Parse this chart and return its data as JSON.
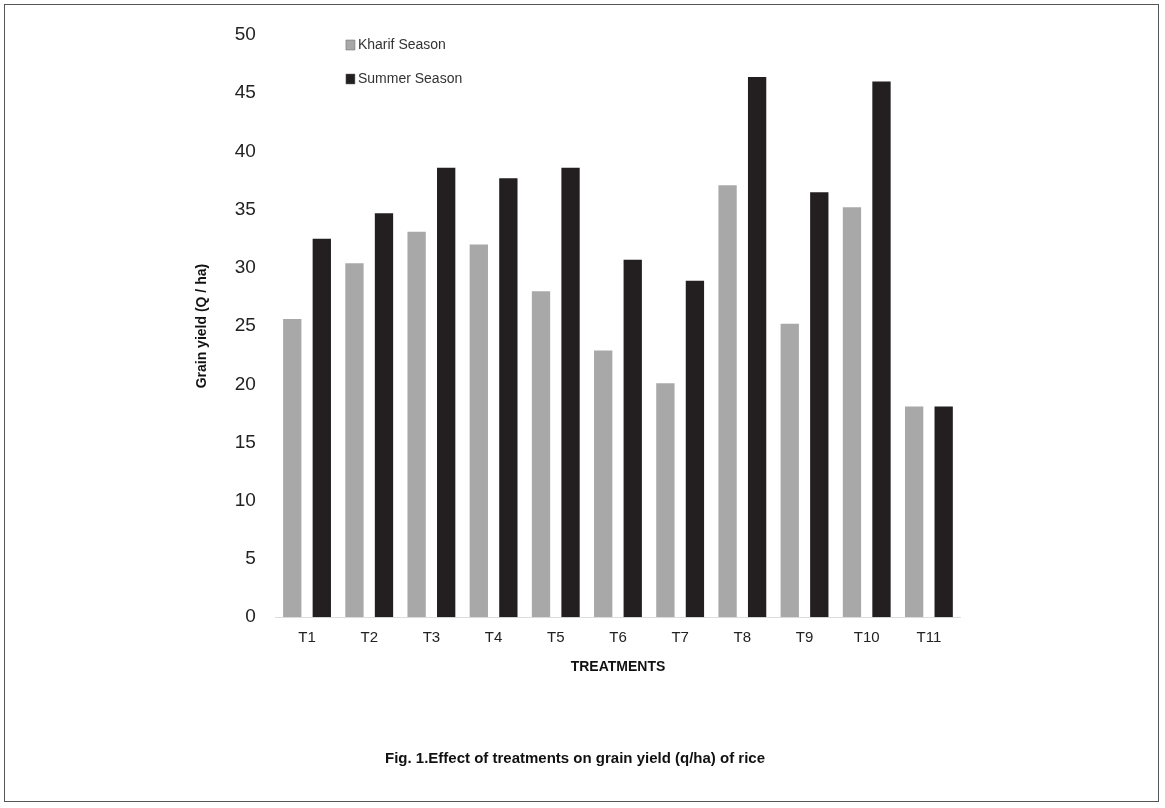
{
  "chart_data": {
    "type": "bar",
    "title": "Fig. 1.Effect of treatments on grain yield (q/ha) of rice",
    "xlabel": "TREATMENTS",
    "ylabel": "Grain yield (Q / ha)",
    "categories": [
      "T1",
      "T2",
      "T3",
      "T4",
      "T5",
      "T6",
      "T7",
      "T8",
      "T9",
      "T10",
      "T11"
    ],
    "series": [
      {
        "name": "Kharif Season",
        "color": "#a8a8a8",
        "values": [
          25.6,
          30.4,
          33.1,
          32.0,
          28.0,
          22.9,
          20.1,
          37.1,
          25.2,
          35.2,
          18.1
        ]
      },
      {
        "name": "Summer Season",
        "color": "#231f20",
        "values": [
          32.5,
          34.7,
          38.6,
          37.7,
          38.6,
          30.7,
          28.9,
          46.4,
          36.5,
          46.0,
          18.1
        ]
      }
    ],
    "ylim": [
      0,
      50
    ],
    "yticks": [
      0,
      5,
      10,
      15,
      20,
      25,
      30,
      35,
      40,
      45,
      50
    ],
    "grid": false,
    "legend": "top left"
  }
}
